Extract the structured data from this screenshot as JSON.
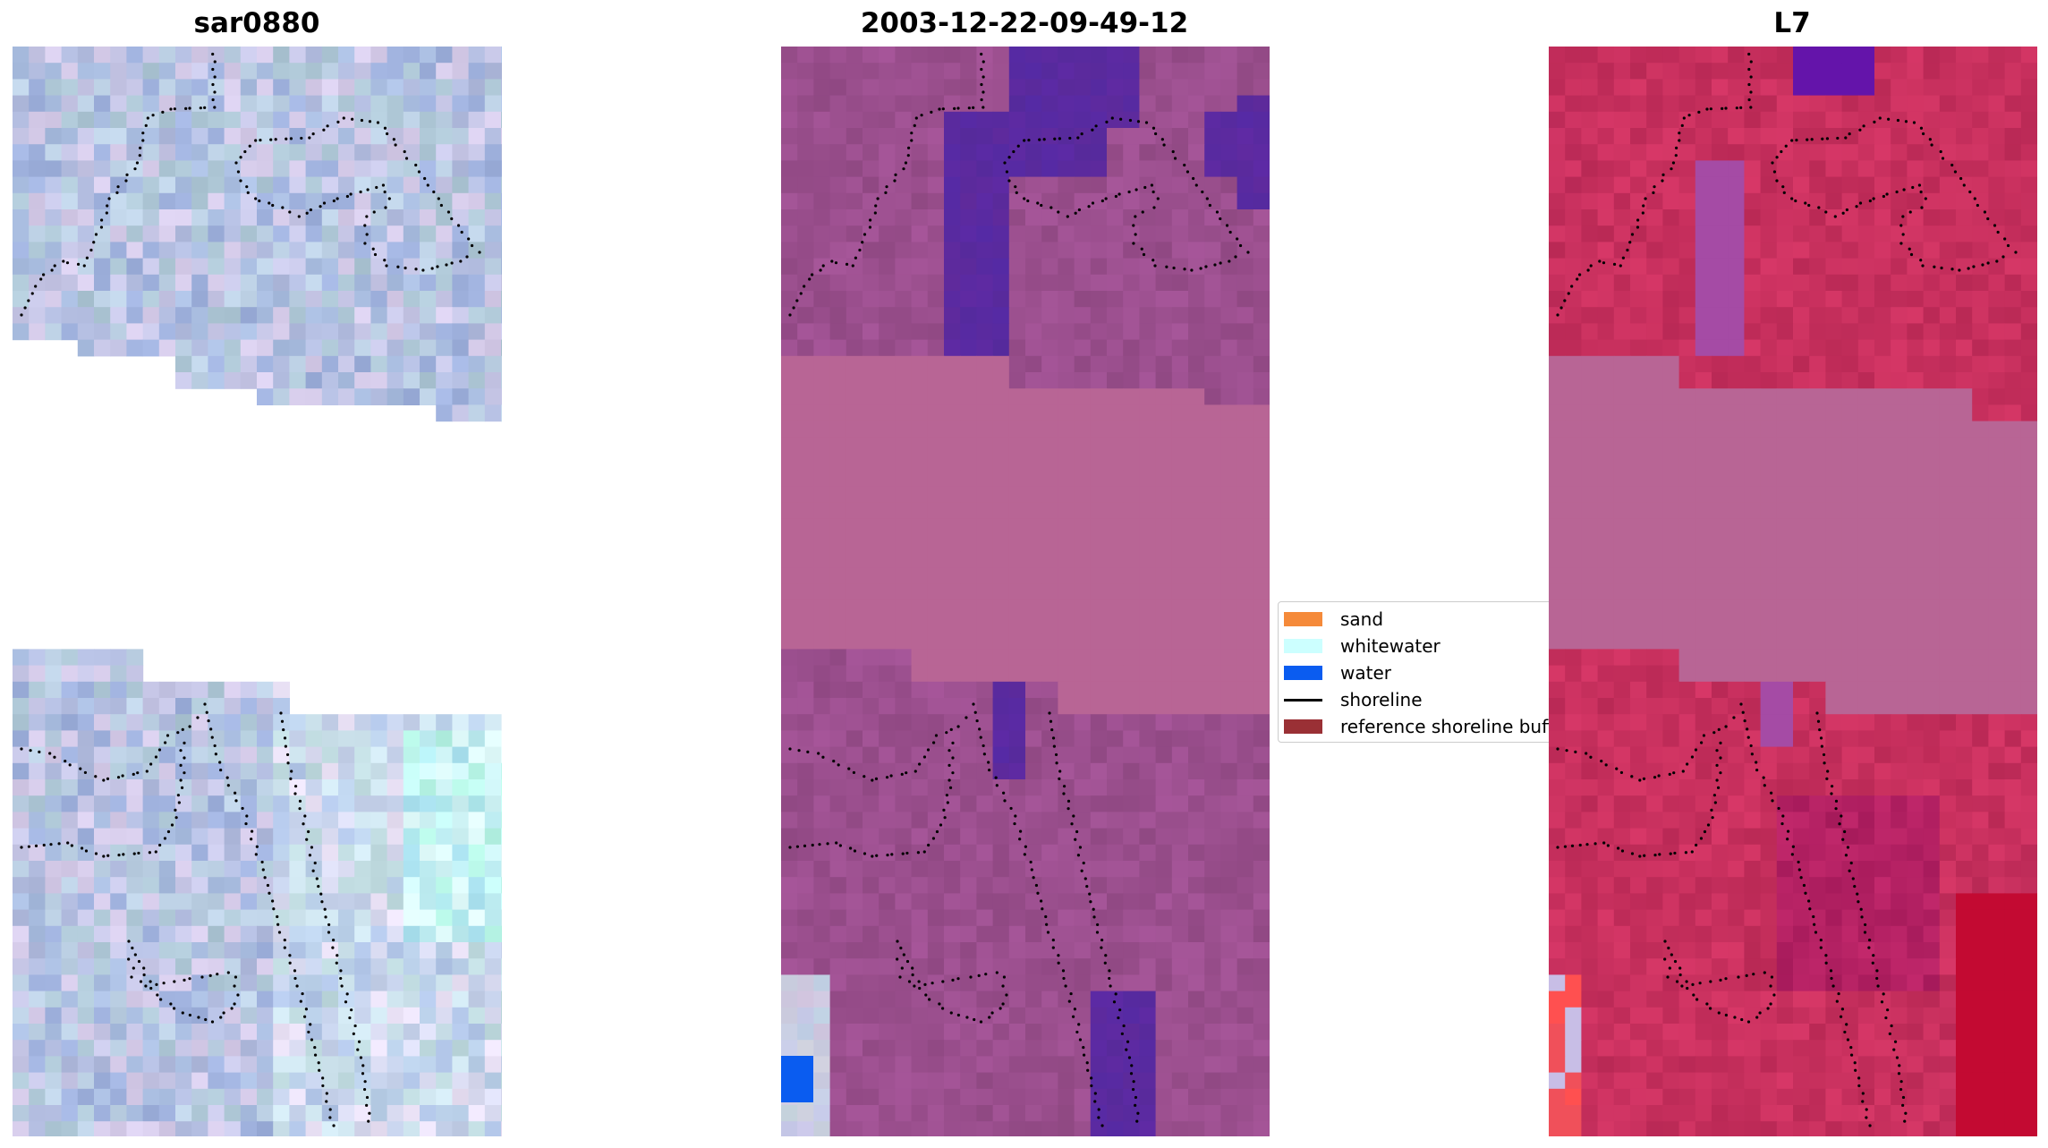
{
  "panels": {
    "left_title": "sar0880",
    "center_title": "2003-12-22-09-49-12",
    "right_title": "L7"
  },
  "legend": {
    "items": [
      {
        "label": "sand",
        "color": "#f58a3a",
        "kind": "patch"
      },
      {
        "label": "whitewater",
        "color": "#ccffff",
        "kind": "patch"
      },
      {
        "label": "water",
        "color": "#0a5cf0",
        "kind": "patch"
      },
      {
        "label": "shoreline",
        "color": "#000000",
        "kind": "line"
      },
      {
        "label": "reference shoreline buffer",
        "color": "#9a3035",
        "kind": "patch"
      }
    ]
  },
  "colors": {
    "sar_base": "#b3bde0",
    "classified_base": "#9b4f8e",
    "classified_nodata": "#b86595",
    "classified_water_dark": "#5a2aa0",
    "l7_base": "#c8305e",
    "l7_nodata": "#b86595"
  }
}
